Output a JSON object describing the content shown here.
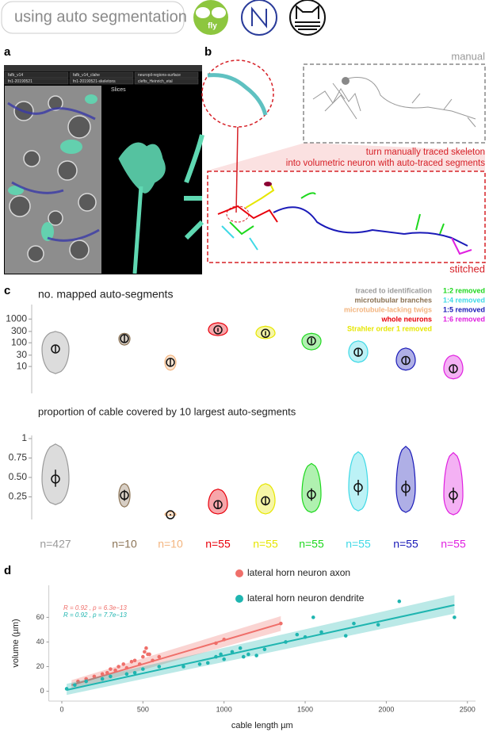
{
  "header": {
    "label": "using auto segmentation",
    "icon_label": "fly"
  },
  "panel_labels": [
    "a",
    "b",
    "c",
    "d"
  ],
  "panel_a": {
    "tabs": [
      "fafb_v14",
      "fafb_v14_clahe",
      "neuropil-regions-surface",
      "fn1-20190521",
      "fn1-20190521-skeletons",
      "clefts_Heinrich_etal"
    ],
    "window": "Slices"
  },
  "panel_b": {
    "manual": "manual",
    "caption": [
      "turn manually traced skeleton",
      "into volumetric neuron with auto-traced segments"
    ],
    "stitched": "stitched"
  },
  "chart_data": [
    {
      "type": "swarm",
      "title": "no. mapped auto-segments",
      "log_scale": true,
      "ylim": [
        1,
        3000
      ],
      "yticks": [
        10,
        30,
        100,
        300,
        1000
      ],
      "series": [
        {
          "name": "traced to identification",
          "color": "#9a9a9a",
          "median": 55,
          "low": 40,
          "high": 80,
          "min": 5,
          "max": 300
        },
        {
          "name": "microtubular branches",
          "color": "#8b7355",
          "median": 150,
          "low": 100,
          "high": 220,
          "min": 80,
          "max": 250
        },
        {
          "name": "microtubule-lacking twigs",
          "color": "#f3b47e",
          "median": 15,
          "low": 10,
          "high": 22,
          "min": 7,
          "max": 30
        },
        {
          "name": "whole neurons",
          "color": "#e8000b",
          "median": 350,
          "low": 290,
          "high": 420,
          "min": 200,
          "max": 700
        },
        {
          "name": "Strahler order 1 removed",
          "color": "#e6e600",
          "median": 250,
          "low": 200,
          "high": 310,
          "min": 150,
          "max": 500
        },
        {
          "name": "1:2 removed",
          "color": "#1ed81e",
          "median": 120,
          "low": 90,
          "high": 160,
          "min": 50,
          "max": 250
        },
        {
          "name": "1:4 removed",
          "color": "#3fd9e6",
          "median": 40,
          "low": 28,
          "high": 55,
          "min": 15,
          "max": 120
        },
        {
          "name": "1:5 removed",
          "color": "#1a1ab8",
          "median": 18,
          "low": 13,
          "high": 25,
          "min": 7,
          "max": 60
        },
        {
          "name": "1:6 removed",
          "color": "#e020e0",
          "median": 8,
          "low": 5.5,
          "high": 11,
          "min": 3,
          "max": 30
        }
      ]
    },
    {
      "type": "swarm",
      "title": "proportion of cable covered by 10 largest auto-segments",
      "ylim": [
        0,
        1
      ],
      "yticks": [
        0.25,
        {
          "value": 0.5,
          "label": "0.50"
        },
        0.75,
        1
      ],
      "n_labels": [
        "n=427",
        "n=10",
        "n=10",
        "n=55",
        "n=55",
        "n=55",
        "n=55",
        "n=55",
        "n=55"
      ],
      "series": [
        {
          "color": "#9a9a9a",
          "median": 0.48,
          "low": 0.38,
          "high": 0.6,
          "min": 0.15,
          "max": 0.93
        },
        {
          "color": "#8b7355",
          "median": 0.27,
          "low": 0.2,
          "high": 0.34,
          "min": 0.12,
          "max": 0.42
        },
        {
          "color": "#f3b47e",
          "median": 0.02,
          "low": 0.01,
          "high": 0.03,
          "min": 0.01,
          "max": 0.06
        },
        {
          "color": "#e8000b",
          "median": 0.15,
          "low": 0.1,
          "high": 0.2,
          "min": 0.03,
          "max": 0.35
        },
        {
          "color": "#e6e600",
          "median": 0.2,
          "low": 0.14,
          "high": 0.26,
          "min": 0.03,
          "max": 0.42
        },
        {
          "color": "#1ed81e",
          "median": 0.28,
          "low": 0.2,
          "high": 0.36,
          "min": 0.05,
          "max": 0.68
        },
        {
          "color": "#3fd9e6",
          "median": 0.37,
          "low": 0.27,
          "high": 0.47,
          "min": 0.07,
          "max": 0.83
        },
        {
          "color": "#1a1ab8",
          "median": 0.36,
          "low": 0.26,
          "high": 0.46,
          "min": 0.05,
          "max": 0.9
        },
        {
          "color": "#e020e0",
          "median": 0.27,
          "low": 0.17,
          "high": 0.37,
          "min": 0.02,
          "max": 0.82
        }
      ]
    },
    {
      "type": "scatter",
      "x_label": "cable length µm",
      "y_label": "volume (µm)",
      "xlim": [
        -80,
        2550
      ],
      "xticks": [
        0,
        500,
        1000,
        1500,
        2000,
        2500
      ],
      "ylim": [
        -8,
        86
      ],
      "yticks": [
        0,
        20,
        40,
        60
      ],
      "series": [
        {
          "name": "lateral horn neuron axon",
          "color": "#ef6f6a",
          "stats": "R = 0.92 , p = 6.3e−13",
          "x": [
            100,
            150,
            200,
            250,
            280,
            300,
            330,
            350,
            380,
            400,
            430,
            450,
            480,
            500,
            510,
            520,
            530,
            540,
            560,
            600,
            950,
            1000,
            1350
          ],
          "values": [
            8,
            10,
            12,
            14,
            15,
            18,
            17,
            20,
            22,
            19,
            24,
            25,
            22,
            28,
            32,
            35,
            30,
            30,
            25,
            28,
            39,
            42,
            55
          ],
          "fit_x": [
            60,
            1350
          ],
          "fit_y": [
            5,
            55
          ],
          "band_low": [
            1,
            49
          ],
          "band_high": [
            9,
            61
          ]
        },
        {
          "name": "lateral horn neuron dendrite",
          "color": "#1fb5b0",
          "stats": "R = 0.92 , p = 7.7e−13",
          "x": [
            30,
            80,
            150,
            250,
            300,
            400,
            450,
            500,
            600,
            750,
            850,
            900,
            950,
            980,
            1000,
            1050,
            1100,
            1120,
            1150,
            1200,
            1250,
            1380,
            1450,
            1500,
            1550,
            1600,
            1750,
            1800,
            1950,
            2080,
            2420
          ],
          "values": [
            2,
            5,
            8,
            10,
            12,
            14,
            15,
            18,
            20,
            20,
            22,
            23,
            28,
            30,
            26,
            32,
            35,
            28,
            30,
            29,
            34,
            40,
            46,
            44,
            60,
            48,
            45,
            55,
            54,
            73,
            60
          ],
          "fit_x": [
            30,
            2420
          ],
          "fit_y": [
            1,
            70
          ],
          "band_low": [
            -3,
            63
          ],
          "band_high": [
            6,
            78
          ]
        }
      ]
    }
  ]
}
